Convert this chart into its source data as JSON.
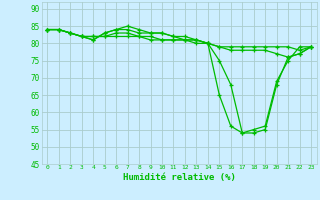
{
  "xlabel": "Humidité relative (%)",
  "background_color": "#cceeff",
  "grid_color": "#aacccc",
  "line_color": "#00bb00",
  "ylim": [
    45,
    92
  ],
  "yticks": [
    45,
    50,
    55,
    60,
    65,
    70,
    75,
    80,
    85,
    90
  ],
  "xticks": [
    0,
    1,
    2,
    3,
    4,
    5,
    6,
    7,
    8,
    9,
    10,
    11,
    12,
    13,
    14,
    15,
    16,
    17,
    18,
    19,
    20,
    21,
    22,
    23
  ],
  "series": [
    [
      84,
      84,
      83,
      82,
      81,
      83,
      84,
      85,
      84,
      83,
      83,
      82,
      82,
      81,
      80,
      65,
      56,
      54,
      54,
      55,
      68,
      76,
      77,
      79
    ],
    [
      84,
      84,
      83,
      82,
      81,
      83,
      84,
      84,
      83,
      83,
      83,
      82,
      81,
      81,
      80,
      75,
      68,
      54,
      55,
      56,
      69,
      75,
      79,
      79
    ],
    [
      84,
      84,
      83,
      82,
      82,
      82,
      83,
      83,
      82,
      82,
      81,
      81,
      81,
      81,
      80,
      79,
      79,
      79,
      79,
      79,
      79,
      79,
      78,
      79
    ],
    [
      84,
      84,
      83,
      82,
      82,
      82,
      82,
      82,
      82,
      81,
      81,
      81,
      81,
      80,
      80,
      79,
      78,
      78,
      78,
      78,
      77,
      76,
      77,
      79
    ]
  ]
}
